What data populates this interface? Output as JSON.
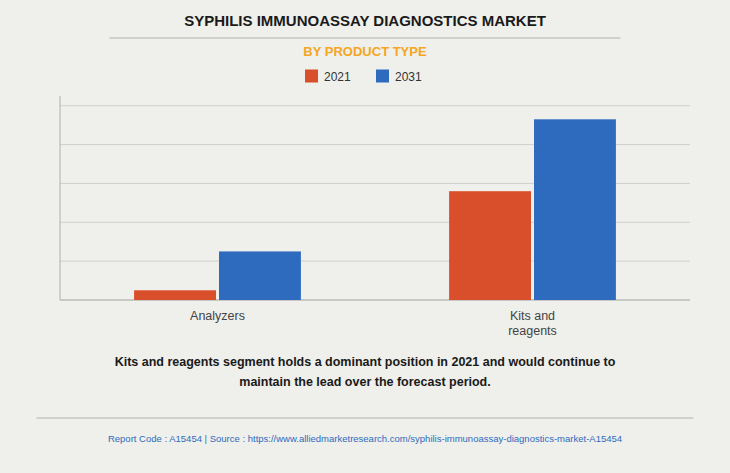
{
  "chart_data": {
    "type": "bar",
    "title": "SYPHILIS IMMUNOASSAY DIAGNOSTICS MARKET",
    "subtitle": "BY PRODUCT TYPE",
    "categories": [
      "Analyzers",
      "Kits and\nreagents"
    ],
    "series": [
      {
        "name": "2021",
        "color": "#d94f2b",
        "values": [
          0.05,
          0.56
        ]
      },
      {
        "name": "2031",
        "color": "#2e6bbf",
        "values": [
          0.25,
          0.93
        ]
      }
    ],
    "ylim": [
      0,
      1.05
    ],
    "yticks": [
      0,
      0.2,
      0.4,
      0.6,
      0.8,
      1.0
    ],
    "grid": true,
    "tick_labels": "x",
    "legend": "top",
    "annotations": [
      "Kits and reagents segment holds a dominant position in 2021 and would continue to",
      "maintain the lead over the forecast period."
    ],
    "footer": "Report Code : A15454  |  Source : https://www.alliedmarketresearch.com/syphilis-immunoassay-diagnostics-market-A15454"
  }
}
